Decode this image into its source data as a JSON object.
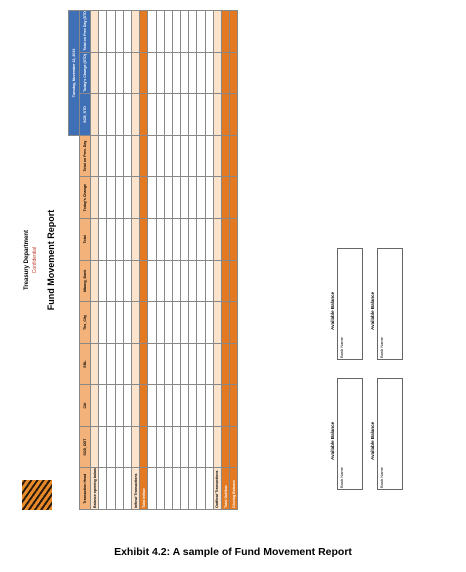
{
  "header": {
    "department": "Treasury Department",
    "classification": "Confidential",
    "title": "Fund Movement Report"
  },
  "table": {
    "date": "Tuesday, November 12, 2013",
    "columns": [
      "Transaction Head",
      "SCB_DDT",
      "Citi",
      "EBL",
      "Tbs_City",
      "Mbang_Bank",
      "Total",
      "Today's Change",
      "Total on Prev. Day",
      "SCB_STD",
      "Today's Change (STD)",
      "Total on Prev Day (STD)"
    ],
    "rows": [
      "Balance opening balance of current month",
      "Inflow/ Transactions",
      "Total Inflow",
      "Outflow/ Transactions",
      "Total Outflow",
      "Closing Balance"
    ]
  },
  "balances": {
    "heading": "Available Balance",
    "labels": [
      "Bank Name",
      "Bank Name",
      "Bank Name",
      "Bank Name"
    ]
  },
  "caption": "Exhibit 4.2: A sample of Fund Movement Report"
}
